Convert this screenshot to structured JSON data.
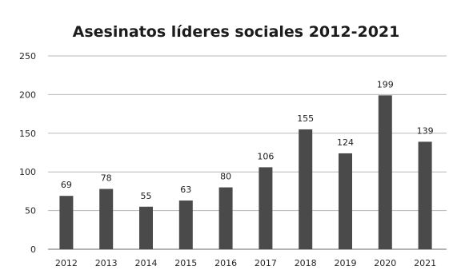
{
  "chart_data": {
    "type": "bar",
    "title": "Asesinatos líderes sociales 2012-2021",
    "xlabel": "",
    "ylabel": "",
    "categories": [
      "2012",
      "2013",
      "2014",
      "2015",
      "2016",
      "2017",
      "2018",
      "2019",
      "2020",
      "2021"
    ],
    "values": [
      69,
      78,
      55,
      63,
      80,
      106,
      155,
      124,
      199,
      139
    ],
    "ylim": [
      0,
      250
    ],
    "yticks": [
      0,
      50,
      100,
      150,
      200,
      250
    ],
    "grid": true,
    "legend": "none",
    "bar_color": "#4a4a4a",
    "grid_color": "#8a8a8a"
  }
}
